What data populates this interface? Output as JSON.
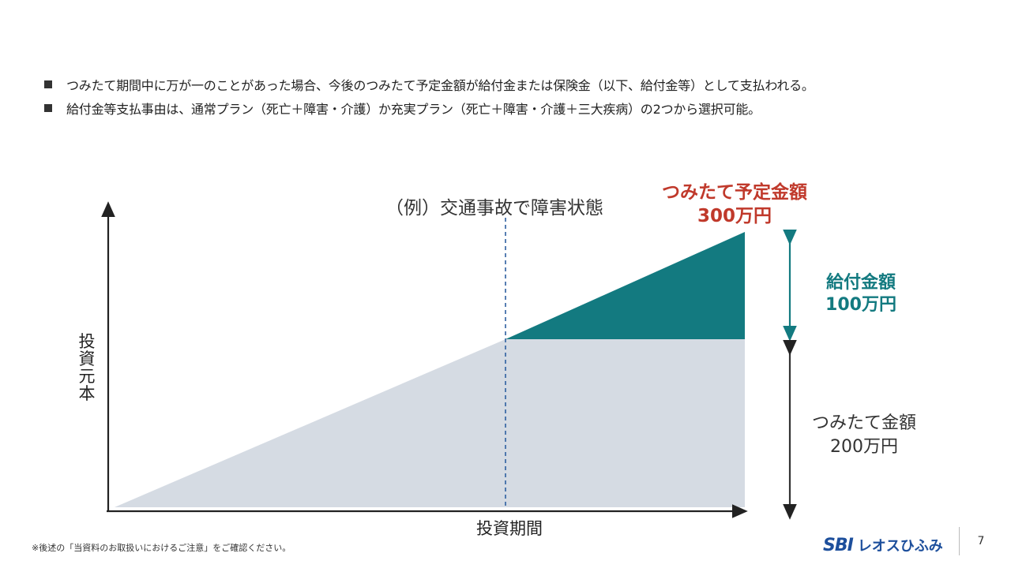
{
  "bullets": [
    {
      "text": "つみたて期間中に万が一のことがあった場合、今後のつみたて予定金額が給付金または保険金（以下、給付金等）として支払われる。"
    },
    {
      "text": "給付金等支払事由は、通常プラン（死亡＋障害・介護）か充実プラン（死亡＋障害・介護＋三大疾病）の2つから選択可能。"
    }
  ],
  "diagram": {
    "event_label": "（例）交通事故で障害状態",
    "planned": {
      "title": "つみたて予定金額",
      "value": "300万円"
    },
    "benefit": {
      "title": "給付金額",
      "value": "100万円"
    },
    "paid": {
      "title": "つみたて金額",
      "value": "200万円"
    },
    "y_axis_label": "投資元本",
    "x_axis_label": "投資期間",
    "colors": {
      "paid_fill": "#d5dbe3",
      "benefit_fill": "#137a80",
      "event_line": "#2e5fa0",
      "axis": "#222222"
    }
  },
  "footnote": "※後述の「当資料のお取扱いにおけるご注意」をご確認ください。",
  "logo": {
    "mark": "SBI",
    "text": "レオスひふみ"
  },
  "page_number": "7"
}
